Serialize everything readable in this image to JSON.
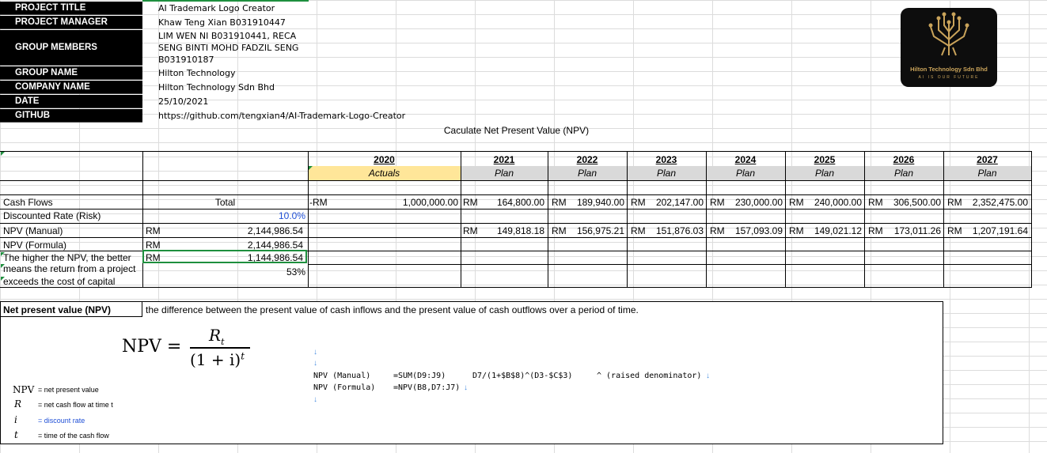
{
  "project": {
    "rows": [
      {
        "label": "PROJECT TITLE",
        "value": "AI Trademark Logo Creator"
      },
      {
        "label": "PROJECT MANAGER",
        "value": "Khaw Teng Xian B031910447"
      },
      {
        "label": "GROUP MEMBERS",
        "value": "LIM WEN NI B031910441, RECA SENG BINTI MOHD FADZIL SENG B031910187"
      },
      {
        "label": "GROUP NAME",
        "value": "Hilton Technology"
      },
      {
        "label": "COMPANY NAME",
        "value": "Hilton Technology Sdn Bhd"
      },
      {
        "label": "DATE",
        "value": "25/10/2021"
      },
      {
        "label": "GITHUB",
        "value": "https://github.com/tengxian4/AI-Trademark-Logo-Creator"
      }
    ]
  },
  "logo": {
    "name": "Hilton Technology Sdn Bhd",
    "tagline": "AI IS OUR FUTURE",
    "icon": "circuit-tree-icon"
  },
  "sheet": {
    "title": "Caculate Net Present Value (NPV)",
    "years": [
      {
        "year": "2020",
        "sub": "Actuals"
      },
      {
        "year": "2021",
        "sub": "Plan"
      },
      {
        "year": "2022",
        "sub": "Plan"
      },
      {
        "year": "2023",
        "sub": "Plan"
      },
      {
        "year": "2024",
        "sub": "Plan"
      },
      {
        "year": "2025",
        "sub": "Plan"
      },
      {
        "year": "2026",
        "sub": "Plan"
      },
      {
        "year": "2027",
        "sub": "Plan"
      }
    ],
    "row_labels": {
      "cash_flows": "Cash Flows",
      "discount": "Discounted Rate (Risk)",
      "npv_manual": "NPV (Manual)",
      "npv_formula": "NPV (Formula)",
      "note_1": "The higher the NPV, the better",
      "note_2": "means the return from a project",
      "note_3": "exceeds the cost of capital"
    },
    "total_header": "Total",
    "discount_rate": "10.0%",
    "currency": "RM",
    "neg_currency": "-RM",
    "npv_manual_total": "2,144,986.54",
    "npv_formula_total": "2,144,986.54",
    "difference_total": "1,144,986.54",
    "percent": "53%",
    "cash_flows": [
      "1,000,000.00",
      "164,800.00",
      "189,940.00",
      "202,147.00",
      "230,000.00",
      "240,000.00",
      "306,500.00",
      "2,352,475.00"
    ],
    "npv_values": [
      "149,818.18",
      "156,975.21",
      "151,876.03",
      "157,093.09",
      "149,021.12",
      "173,011.26",
      "1,207,191.64"
    ]
  },
  "definition": {
    "title": "Net present value (NPV)",
    "text": "the difference between the present value of cash inflows and the present value of cash outflows over a period of time.",
    "formula_lhs": "NPV =",
    "numerator": "R",
    "numerator_sub": "t",
    "denominator": "(1 + i)",
    "denominator_exp": "t",
    "legend": [
      {
        "sym": "NPV",
        "desc": "= net present value"
      },
      {
        "sym": "R",
        "desc": "= net cash flow at time t"
      },
      {
        "sym": "i",
        "desc": "= discount rate"
      },
      {
        "sym": "t",
        "desc": "= time of the cash flow"
      }
    ],
    "code_manual_label": "NPV (Manual)",
    "code_manual_formula": "=SUM(D9:J9)",
    "code_formula_label": "NPV (Formula)",
    "code_formula_formula": "=NPV(B8,D7:J7)",
    "code_pv": "D7/(1+$B$8)^(D3-$C$3)",
    "code_note": "^ (raised denominator)",
    "code_arrow": "↓"
  },
  "colors": {
    "actuals_bg": "#ffe699",
    "plan_bg": "#d9d9d9",
    "link_blue": "#1f4fd6",
    "select_green": "#1e8f3e"
  }
}
